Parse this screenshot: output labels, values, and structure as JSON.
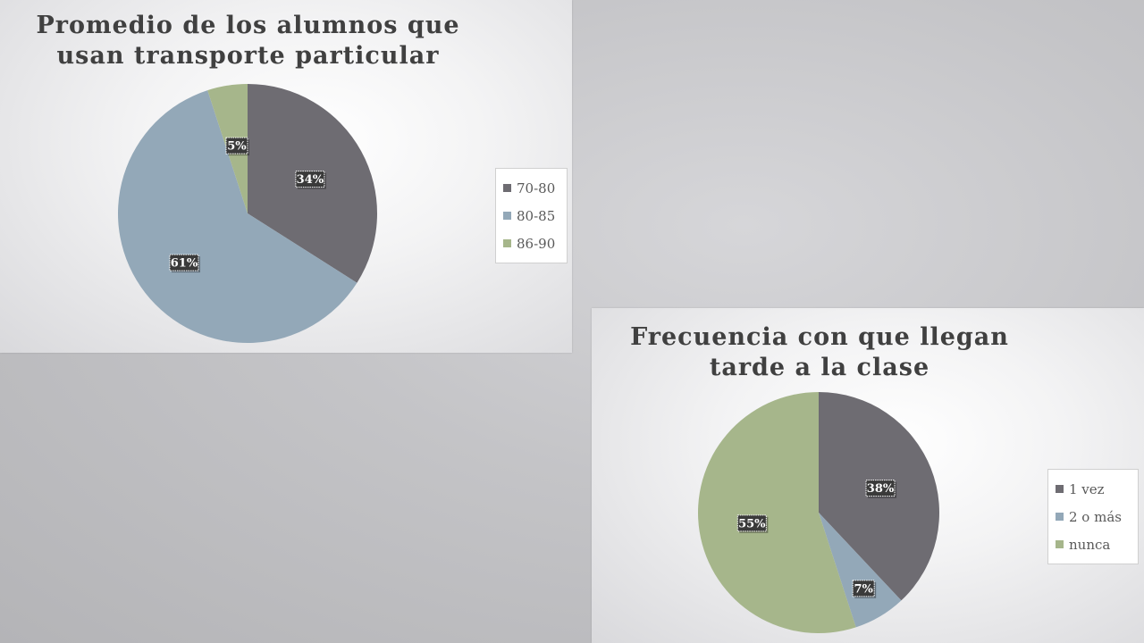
{
  "chart_data": [
    {
      "type": "pie",
      "title": [
        "Promedio de los alumnos que",
        "usan transporte particular"
      ],
      "categories": [
        "70-80",
        "80-85",
        "86-90"
      ],
      "values": [
        34,
        61,
        5
      ],
      "labels": [
        "34%",
        "61%",
        "5%"
      ],
      "colors": [
        "#6e6c72",
        "#93a8b8",
        "#a6b68b"
      ],
      "legend": "right"
    },
    {
      "type": "pie",
      "title": [
        "Frecuencia con que llegan",
        "tarde a la clase"
      ],
      "categories": [
        "1 vez",
        "2 o más",
        "nunca"
      ],
      "values": [
        38,
        7,
        55
      ],
      "labels": [
        "38%",
        "7%",
        "55%"
      ],
      "colors": [
        "#6e6c72",
        "#93a8b8",
        "#a6b68b"
      ],
      "legend": "right"
    }
  ]
}
